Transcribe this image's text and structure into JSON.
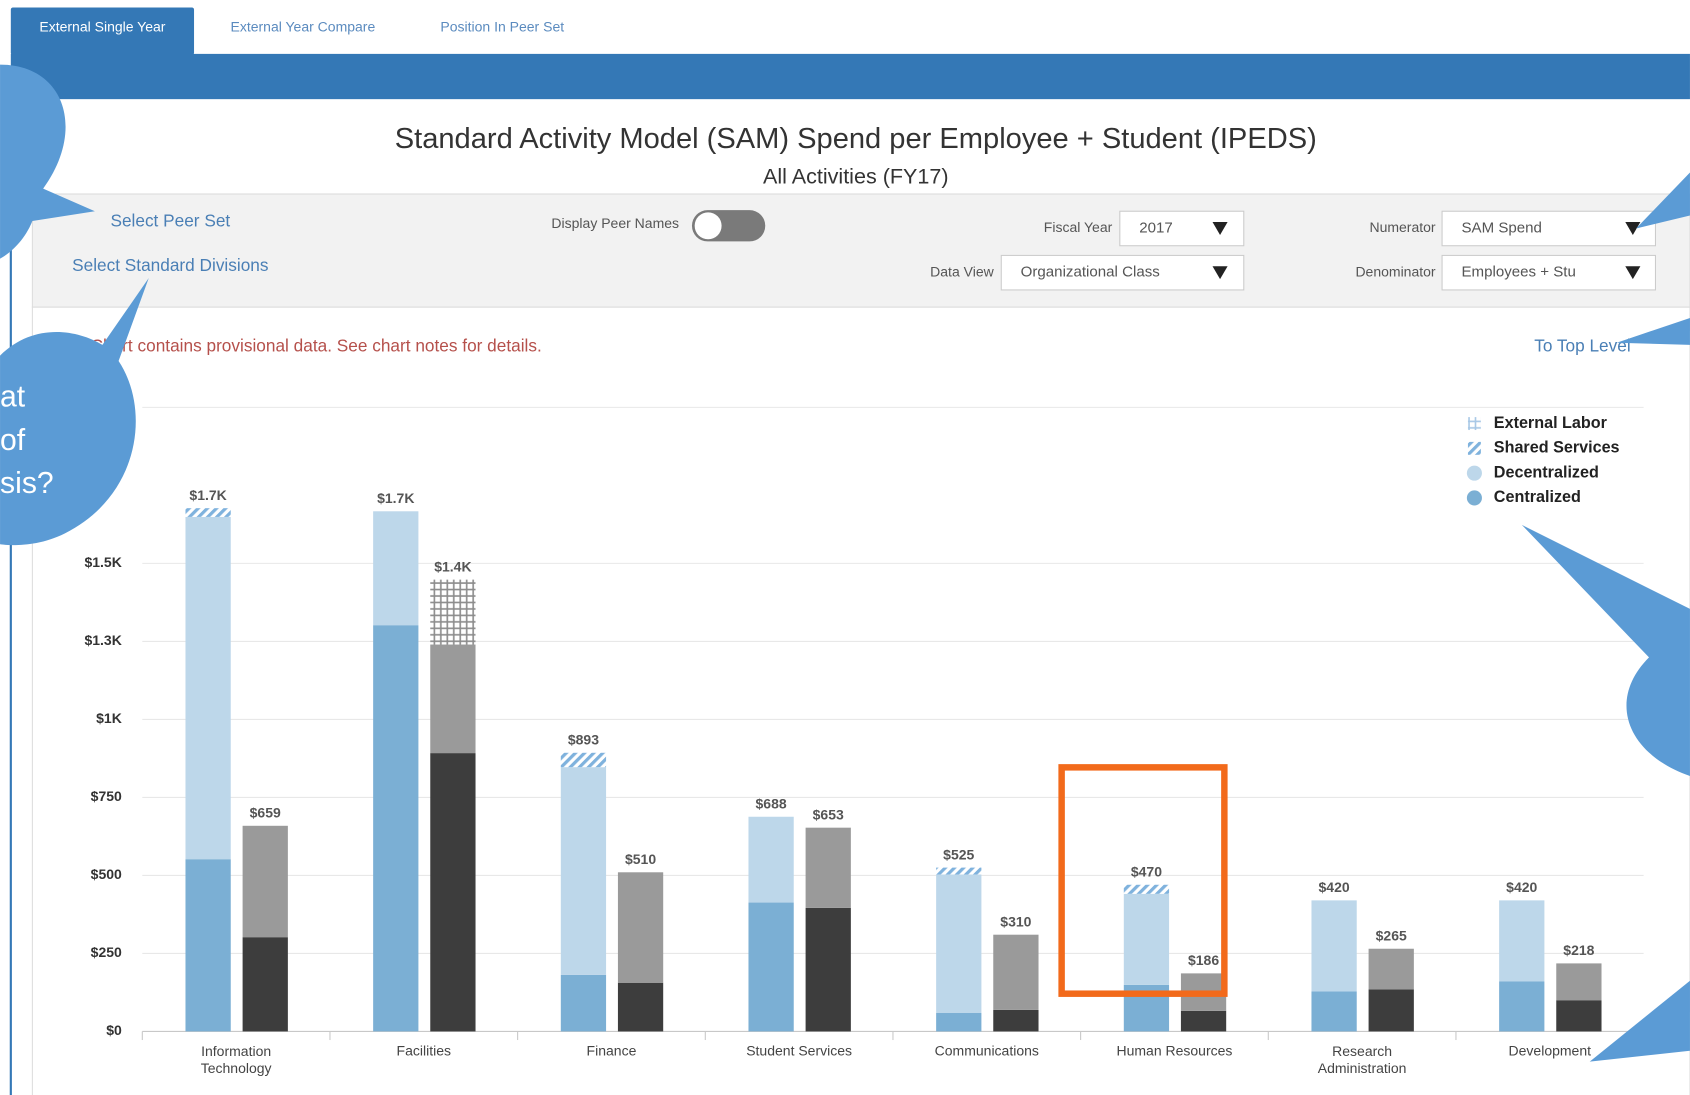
{
  "tabs": [
    "External Single Year",
    "External Year Compare",
    "Position In Peer Set"
  ],
  "title": "Standard Activity Model (SAM) Spend per Employee + Student (IPEDS)",
  "subtitle": "All Activities (FY17)",
  "controls": {
    "select_peer_set": "Select Peer Set",
    "select_standard_divisions": "Select Standard Divisions",
    "display_peer_names": "Display Peer Names",
    "fiscal_year_label": "Fiscal Year",
    "fiscal_year_value": "2017",
    "data_view_label": "Data View",
    "data_view_value": "Organizational Class",
    "numerator_label": "Numerator",
    "numerator_value": "SAM Spend",
    "denominator_label": "Denominator",
    "denominator_value": "Employees + Stu"
  },
  "notice": "Chart contains provisional data. See chart notes for details.",
  "to_top_level": "To Top Level",
  "callout_text": [
    "at",
    "of",
    "sis?"
  ],
  "chart_data": {
    "type": "stacked_bar",
    "categories": [
      "Information Technology",
      "Facilities",
      "Finance",
      "Student Services",
      "Communications",
      "Human Resources",
      "Research Administration",
      "Development"
    ],
    "series": [
      {
        "name": "Centralized",
        "color": "#7bafd4",
        "pattern": null,
        "values": [
          552,
          1302,
          181,
          413,
          59,
          149,
          128,
          160
        ]
      },
      {
        "name": "Decentralized",
        "color": "#bdd7ea",
        "pattern": null,
        "values": [
          1097,
          365,
          666,
          275,
          444,
          292,
          292,
          260
        ]
      },
      {
        "name": "Shared Services",
        "color": "#7fb2dd",
        "pattern": "diagonal",
        "values": [
          28,
          0,
          46,
          0,
          22,
          29,
          0,
          0
        ]
      },
      {
        "name": "External Labor",
        "color": "#a8c8e6",
        "pattern": "crosshatch",
        "values": [
          0,
          0,
          0,
          0,
          0,
          0,
          0,
          0
        ]
      }
    ],
    "value_labels": [
      "$1.7K",
      "$1.7K",
      "$893",
      "$688",
      "$525",
      "$470",
      "$420",
      "$420"
    ],
    "comparison_series": [
      {
        "color": "#3d3d3d",
        "pattern": null,
        "values": [
          302,
          892,
          156,
          396,
          69,
          66,
          135,
          100
        ]
      },
      {
        "color": "#9a9a9a",
        "pattern": null,
        "values": [
          357,
          348,
          354,
          257,
          241,
          120,
          130,
          118
        ]
      },
      {
        "color": "#8c8c8c",
        "pattern": "diagonal",
        "values": [
          0,
          0,
          0,
          0,
          0,
          0,
          0,
          0
        ]
      },
      {
        "color": "#8c8c8c",
        "pattern": "crosshatch",
        "values": [
          0,
          208,
          0,
          0,
          0,
          0,
          0,
          0
        ]
      }
    ],
    "comparison_value_labels": [
      "$659",
      "$1.4K",
      "$510",
      "$653",
      "$310",
      "$186",
      "$265",
      "$218"
    ],
    "ylim": [
      0,
      2000
    ],
    "yticks": [
      {
        "value": 0,
        "label": "$0"
      },
      {
        "value": 250,
        "label": "$250"
      },
      {
        "value": 500,
        "label": "$500"
      },
      {
        "value": 750,
        "label": "$750"
      },
      {
        "value": 1000,
        "label": "$1K"
      },
      {
        "value": 1250,
        "label": "$1.3K"
      },
      {
        "value": 1500,
        "label": "$1.5K"
      }
    ],
    "grid": true,
    "legend": "upper right"
  }
}
